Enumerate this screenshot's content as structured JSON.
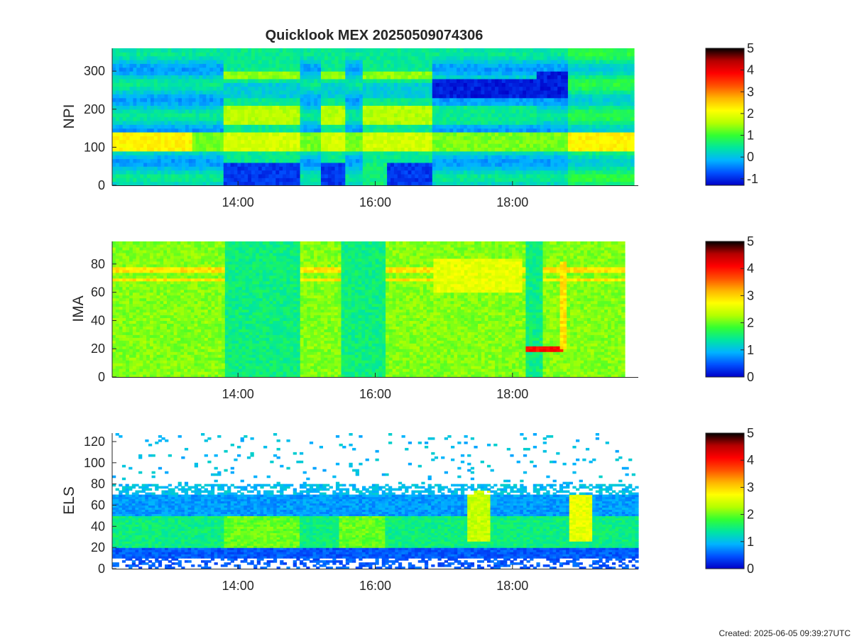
{
  "title": "Quicklook MEX 20250509074306",
  "footer": "Created: 2025-06-05 09:39:27UTC",
  "colormap": [
    "#0000c8",
    "#0050ff",
    "#00b4ff",
    "#00e6a0",
    "#32ff32",
    "#b4ff00",
    "#ffff00",
    "#ffb400",
    "#ff5000",
    "#ff0000",
    "#b40000",
    "#000000"
  ],
  "chart_data": [
    {
      "type": "heatmap",
      "name": "NPI",
      "title": "Quicklook MEX 20250509074306",
      "xlabel": "",
      "ylabel": "NPI",
      "x_ticks": [
        "14:00",
        "16:00",
        "18:00"
      ],
      "y_ticks": [
        "0",
        "100",
        "200",
        "300"
      ],
      "ylim": [
        0,
        360
      ],
      "colorbar": {
        "range": [
          -1.3,
          5
        ],
        "ticks": [
          "-1",
          "0",
          "1",
          "2",
          "3",
          "4",
          "5"
        ]
      },
      "time_range": [
        "12:10",
        "19:50"
      ]
    },
    {
      "type": "heatmap",
      "name": "IMA",
      "xlabel": "",
      "ylabel": "IMA",
      "x_ticks": [
        "14:00",
        "16:00",
        "18:00"
      ],
      "y_ticks": [
        "0",
        "20",
        "40",
        "60",
        "80"
      ],
      "ylim": [
        0,
        96
      ],
      "colorbar": {
        "range": [
          0,
          5
        ],
        "ticks": [
          "0",
          "1",
          "2",
          "3",
          "4",
          "5"
        ]
      },
      "time_range": [
        "12:10",
        "19:50"
      ]
    },
    {
      "type": "heatmap",
      "name": "ELS",
      "xlabel": "",
      "ylabel": "ELS",
      "x_ticks": [
        "14:00",
        "16:00",
        "18:00"
      ],
      "y_ticks": [
        "0",
        "20",
        "40",
        "60",
        "80",
        "100",
        "120"
      ],
      "ylim": [
        0,
        128
      ],
      "colorbar": {
        "range": [
          0,
          5
        ],
        "ticks": [
          "0",
          "1",
          "2",
          "3",
          "4",
          "5"
        ]
      },
      "time_range": [
        "12:10",
        "19:50"
      ]
    }
  ]
}
